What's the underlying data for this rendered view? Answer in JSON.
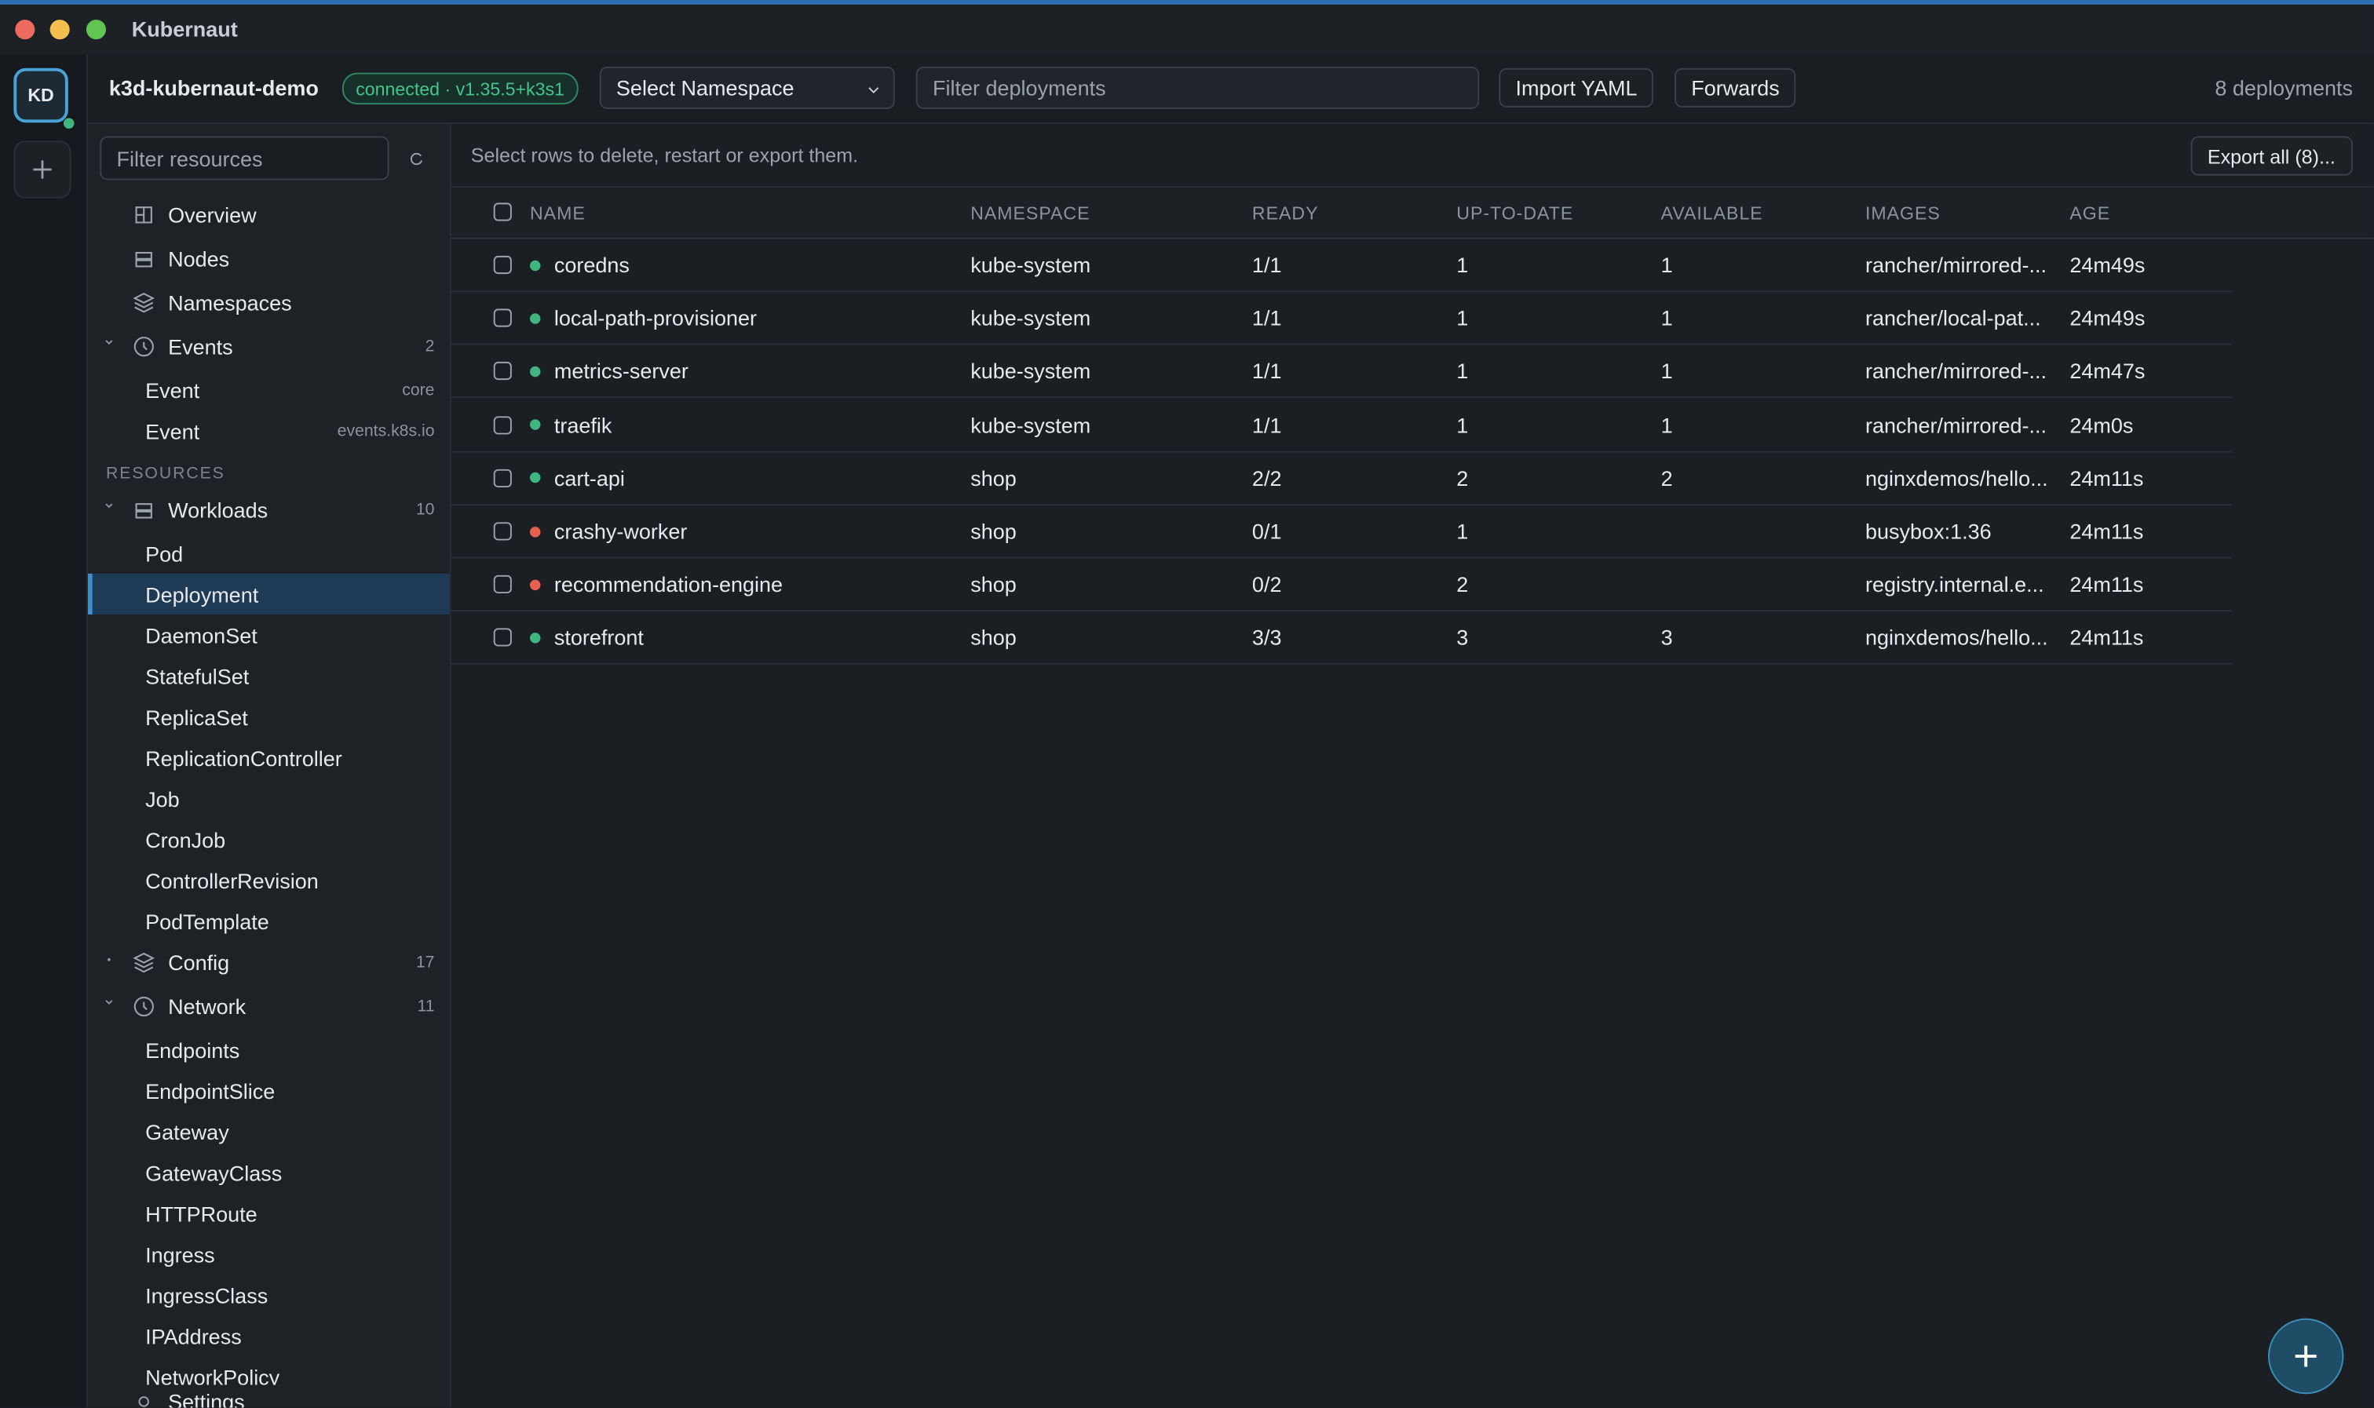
{
  "window": {
    "title": "Kubernaut"
  },
  "rail": {
    "avatar": "KD"
  },
  "toolbar": {
    "context": "k3d-kubernaut-demo",
    "status": "connected · v1.35.5+k3s1",
    "namespace_select": "Select Namespace",
    "filter": "Filter deployments",
    "buttons": [
      "Import YAML",
      "Forwards"
    ],
    "count": "8 deployments"
  },
  "sidebar": {
    "filter": "Filter resources",
    "items": [
      {
        "label": "Overview"
      },
      {
        "label": "Nodes"
      },
      {
        "label": "Namespaces"
      },
      {
        "label": "Events",
        "count": 2,
        "expanded": true,
        "children": [
          {
            "label": "Event",
            "group": "core"
          },
          {
            "label": "Event",
            "group": "events.k8s.io"
          }
        ]
      }
    ],
    "section": "RESOURCES",
    "groups": [
      {
        "label": "Workloads",
        "count": 10,
        "expanded": true,
        "children": [
          {
            "label": "Pod"
          },
          {
            "label": "Deployment",
            "selected": true
          },
          {
            "label": "DaemonSet"
          },
          {
            "label": "StatefulSet"
          },
          {
            "label": "ReplicaSet"
          },
          {
            "label": "ReplicationController"
          },
          {
            "label": "Job"
          },
          {
            "label": "CronJob"
          },
          {
            "label": "ControllerRevision"
          },
          {
            "label": "PodTemplate"
          }
        ]
      },
      {
        "label": "Config",
        "count": 17,
        "expanded": false
      },
      {
        "label": "Network",
        "count": 11,
        "expanded": true,
        "children": [
          {
            "label": "Endpoints"
          },
          {
            "label": "EndpointSlice"
          },
          {
            "label": "Gateway"
          },
          {
            "label": "GatewayClass"
          },
          {
            "label": "HTTPRoute"
          },
          {
            "label": "Ingress"
          },
          {
            "label": "IngressClass"
          },
          {
            "label": "IPAddress"
          },
          {
            "label": "NetworkPolicy"
          }
        ]
      }
    ],
    "footer": "Settings"
  },
  "table": {
    "hint": "Select rows to delete, restart or export them.",
    "export": "Export all (8)...",
    "columns": [
      "NAME",
      "NAMESPACE",
      "READY",
      "UP-TO-DATE",
      "AVAILABLE",
      "IMAGES",
      "AGE"
    ],
    "rows": [
      {
        "status_color": "#3fb57f",
        "cells": [
          "coredns",
          "kube-system",
          "1/1",
          "1",
          "1",
          "rancher/mirrored-...",
          "24m49s"
        ]
      },
      {
        "status_color": "#3fb57f",
        "cells": [
          "local-path-provisioner",
          "kube-system",
          "1/1",
          "1",
          "1",
          "rancher/local-pat...",
          "24m49s"
        ]
      },
      {
        "status_color": "#3fb57f",
        "cells": [
          "metrics-server",
          "kube-system",
          "1/1",
          "1",
          "1",
          "rancher/mirrored-...",
          "24m47s"
        ]
      },
      {
        "status_color": "#3fb57f",
        "cells": [
          "traefik",
          "kube-system",
          "1/1",
          "1",
          "1",
          "rancher/mirrored-...",
          "24m0s"
        ]
      },
      {
        "status_color": "#3fb57f",
        "cells": [
          "cart-api",
          "shop",
          "2/2",
          "2",
          "2",
          "nginxdemos/hello...",
          "24m11s"
        ]
      },
      {
        "status_color": "#e5604f",
        "cells": [
          "crashy-worker",
          "shop",
          "0/1",
          "1",
          null,
          "busybox:1.36",
          "24m11s"
        ]
      },
      {
        "status_color": "#e5604f",
        "cells": [
          "recommendation-engine",
          "shop",
          "0/2",
          "2",
          null,
          "registry.internal.e...",
          "24m11s"
        ]
      },
      {
        "status_color": "#3fb57f",
        "cells": [
          "storefront",
          "shop",
          "3/3",
          "3",
          "3",
          "nginxdemos/hello...",
          "24m11s"
        ]
      }
    ]
  }
}
